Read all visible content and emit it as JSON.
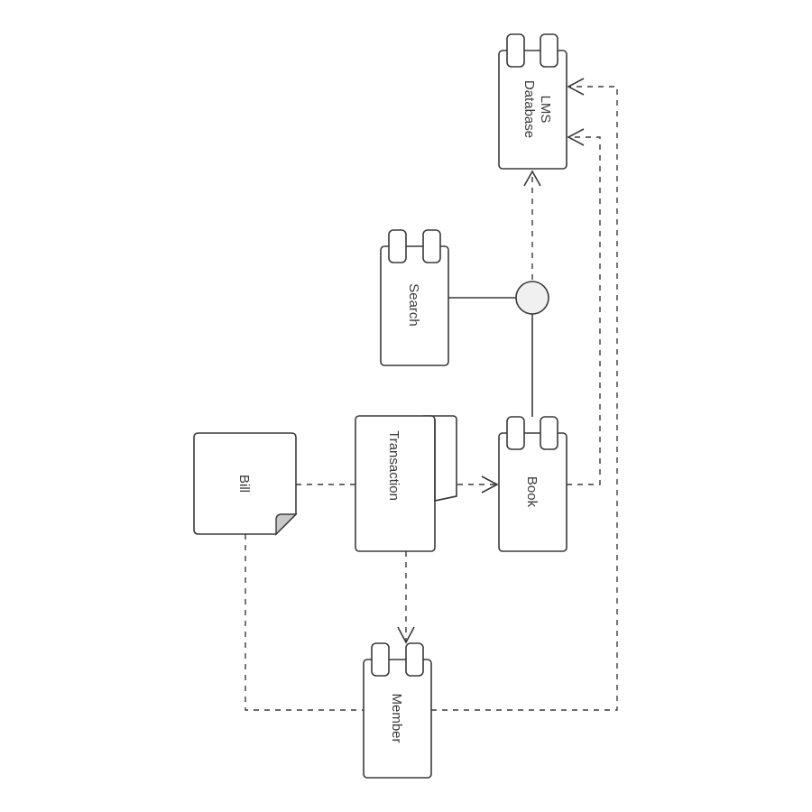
{
  "diagram": {
    "nodes": {
      "lms_database": {
        "label_line1": "LMS",
        "label_line2": "Database",
        "kind": "component"
      },
      "search": {
        "label": "Search",
        "kind": "component"
      },
      "book": {
        "label": "Book",
        "kind": "component"
      },
      "member": {
        "label": "Member",
        "kind": "component"
      },
      "transaction": {
        "label": "Transaction",
        "kind": "artifact"
      },
      "bill": {
        "label": "Bill",
        "kind": "note"
      },
      "interface": {
        "kind": "interface-circle"
      }
    },
    "edges": [
      {
        "from": "interface",
        "to": "lms_database",
        "style": "dashed",
        "arrow": "open"
      },
      {
        "from": "search",
        "to": "interface",
        "style": "solid",
        "arrow": "none"
      },
      {
        "from": "book",
        "to": "interface",
        "style": "solid",
        "arrow": "none"
      },
      {
        "from": "book",
        "to": "lms_database",
        "style": "dashed",
        "arrow": "open"
      },
      {
        "from": "member",
        "to": "lms_database",
        "style": "dashed",
        "arrow": "open"
      },
      {
        "from": "transaction",
        "to": "book",
        "style": "dashed",
        "arrow": "open"
      },
      {
        "from": "transaction",
        "to": "member",
        "style": "dashed",
        "arrow": "open"
      },
      {
        "from": "bill",
        "to": "transaction",
        "style": "dashed",
        "arrow": "none"
      },
      {
        "from": "bill",
        "to": "member",
        "style": "dashed",
        "arrow": "none"
      }
    ],
    "colors": {
      "stroke": "#3a3a3a",
      "fill": "#ffffff",
      "interface_fill": "#f0f0f0",
      "fold_fill": "#c8c8c8"
    }
  }
}
